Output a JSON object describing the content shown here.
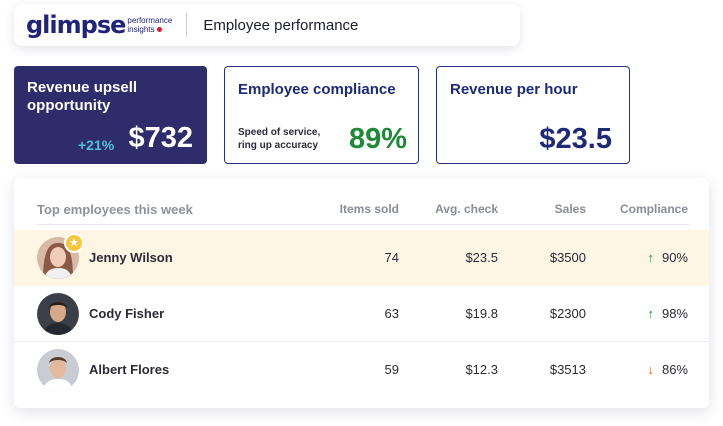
{
  "header": {
    "logo_word": "glimpse",
    "logo_sub_1": "performance",
    "logo_sub_2": "insights",
    "title": "Employee performance"
  },
  "kpis": {
    "upsell": {
      "title": "Revenue upsell opportunity",
      "change": "+21%",
      "value": "$732"
    },
    "compliance": {
      "title": "Employee compliance",
      "subtitle": "Speed of service, ring up accuracy",
      "value": "89%"
    },
    "rev_hour": {
      "title": "Revenue per hour",
      "value": "$23.5"
    }
  },
  "table": {
    "title": "Top employees this week",
    "columns": {
      "items": "Items sold",
      "avg": "Avg. check",
      "sales": "Sales",
      "compliance": "Compliance"
    },
    "rows": [
      {
        "name": "Jenny Wilson",
        "items": "74",
        "avg": "$23.5",
        "sales": "$3500",
        "compliance": "90%",
        "trend": "up",
        "arrow": "↑"
      },
      {
        "name": "Cody Fisher",
        "items": "63",
        "avg": "$19.8",
        "sales": "$2300",
        "compliance": "98%",
        "trend": "up",
        "arrow": "↑"
      },
      {
        "name": "Albert Flores",
        "items": "59",
        "avg": "$12.3",
        "sales": "$3513",
        "compliance": "86%",
        "trend": "down",
        "arrow": "↓"
      }
    ]
  },
  "colors": {
    "brand_navy": "#20237a",
    "dark_card": "#2f2c6b",
    "positive": "#1e8a35",
    "negative": "#e0602a",
    "highlight_row": "#fdf6e5",
    "brand_red": "#e3192b"
  },
  "icons": {
    "top_performer": "star-icon",
    "trend_up": "arrow-up-icon",
    "trend_down": "arrow-down-icon"
  }
}
